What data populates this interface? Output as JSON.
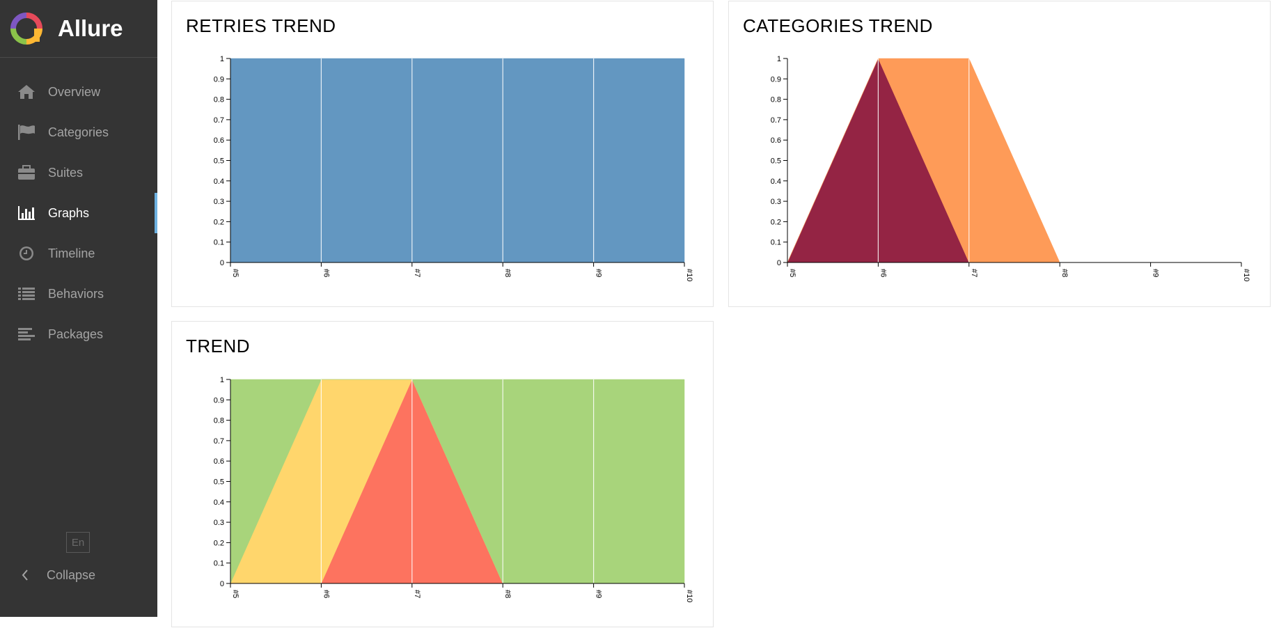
{
  "app": {
    "name": "Allure"
  },
  "sidebar": {
    "items": [
      {
        "label": "Overview",
        "icon": "home-icon",
        "active": false
      },
      {
        "label": "Categories",
        "icon": "flag-icon",
        "active": false
      },
      {
        "label": "Suites",
        "icon": "briefcase-icon",
        "active": false
      },
      {
        "label": "Graphs",
        "icon": "bar-chart-icon",
        "active": true
      },
      {
        "label": "Timeline",
        "icon": "clock-icon",
        "active": false
      },
      {
        "label": "Behaviors",
        "icon": "list-icon",
        "active": false
      },
      {
        "label": "Packages",
        "icon": "align-left-icon",
        "active": false
      }
    ],
    "language": "En",
    "collapse_label": "Collapse"
  },
  "colors": {
    "sidebar_bg": "#343434",
    "active_marker": "#6eb2e1",
    "retries": "#6397c1",
    "product_defects": "#942444",
    "test_defects": "#fe9b58",
    "passed": "#a8d47b",
    "broken": "#ffd66c",
    "failed": "#fd735f"
  },
  "chart_data": [
    {
      "id": "retries",
      "type": "area",
      "title": "RETRIES TREND",
      "x": [
        "#5",
        "#6",
        "#7",
        "#8",
        "#9",
        "#10"
      ],
      "ylim": [
        0,
        1
      ],
      "yticks": [
        "0",
        "0.1",
        "0.2",
        "0.3",
        "0.4",
        "0.5",
        "0.6",
        "0.7",
        "0.8",
        "0.9",
        "1"
      ],
      "stacked": true,
      "series": [
        {
          "values": [
            1,
            1,
            1,
            1,
            1,
            1
          ],
          "color": "#6397c1"
        }
      ]
    },
    {
      "id": "categories",
      "type": "area",
      "title": "CATEGORIES TREND",
      "x": [
        "#5",
        "#6",
        "#7",
        "#8",
        "#9",
        "#10"
      ],
      "ylim": [
        0,
        1
      ],
      "yticks": [
        "0",
        "0.1",
        "0.2",
        "0.3",
        "0.4",
        "0.5",
        "0.6",
        "0.7",
        "0.8",
        "0.9",
        "1"
      ],
      "stacked": true,
      "series": [
        {
          "values": [
            0,
            1,
            0,
            0,
            0,
            0
          ],
          "color": "#942444"
        },
        {
          "values": [
            0,
            0,
            1,
            0,
            0,
            0
          ],
          "color": "#fe9b58"
        }
      ]
    },
    {
      "id": "trend",
      "type": "area",
      "title": "TREND",
      "x": [
        "#5",
        "#6",
        "#7",
        "#8",
        "#9",
        "#10"
      ],
      "ylim": [
        0,
        1
      ],
      "yticks": [
        "0",
        "0.1",
        "0.2",
        "0.3",
        "0.4",
        "0.5",
        "0.6",
        "0.7",
        "0.8",
        "0.9",
        "1"
      ],
      "stacked": true,
      "series": [
        {
          "values": [
            0,
            0,
            1,
            0,
            0,
            0
          ],
          "color": "#fd735f"
        },
        {
          "values": [
            0,
            1,
            0,
            0,
            0,
            0
          ],
          "color": "#ffd66c"
        },
        {
          "values": [
            1,
            0,
            0,
            1,
            1,
            1
          ],
          "color": "#a8d47b"
        }
      ]
    }
  ]
}
